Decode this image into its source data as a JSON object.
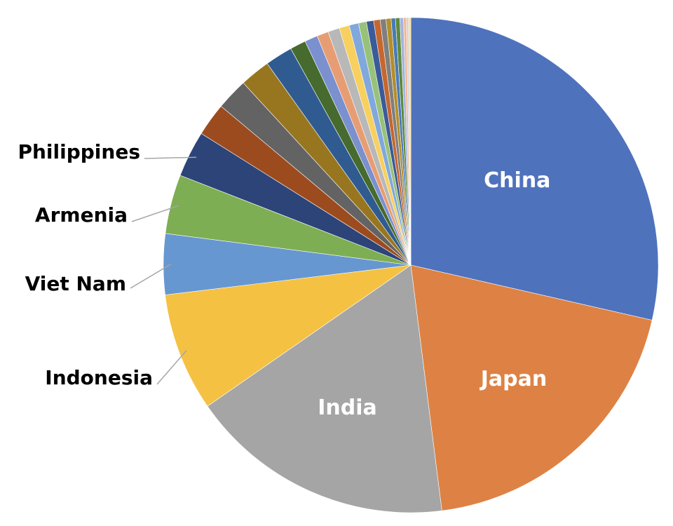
{
  "chart_data": {
    "type": "pie",
    "title": "",
    "start_angle_deg": 0,
    "direction": "clockwise",
    "slices": [
      {
        "label": "China",
        "value": 30.3,
        "color": "#4f72bd",
        "label_style": "inside"
      },
      {
        "label": "Japan",
        "value": 20.6,
        "color": "#dd8244",
        "label_style": "inside"
      },
      {
        "label": "India",
        "value": 18.4,
        "color": "#a5a5a5",
        "label_style": "inside"
      },
      {
        "label": "Indonesia",
        "value": 8.2,
        "color": "#f4c142",
        "label_style": "outside"
      },
      {
        "label": "Viet Nam",
        "value": 4.2,
        "color": "#6797d0",
        "label_style": "outside"
      },
      {
        "label": "Armenia",
        "value": 4.1,
        "color": "#7eae53",
        "label_style": "outside"
      },
      {
        "label": "Philippines",
        "value": 3.2,
        "color": "#2c4478",
        "label_style": "outside"
      },
      {
        "value": 2.3,
        "color": "#9c4b1f"
      },
      {
        "value": 2.2,
        "color": "#636363"
      },
      {
        "value": 2.1,
        "color": "#98761f"
      },
      {
        "value": 1.9,
        "color": "#2f5b91"
      },
      {
        "value": 1.1,
        "color": "#476a2e"
      },
      {
        "value": 0.9,
        "color": "#7a90cf"
      },
      {
        "value": 0.8,
        "color": "#e79d73"
      },
      {
        "value": 0.8,
        "color": "#b8b8b8"
      },
      {
        "value": 0.7,
        "color": "#f7d05f"
      },
      {
        "value": 0.65,
        "color": "#80a8dc"
      },
      {
        "value": 0.55,
        "color": "#98c279"
      },
      {
        "value": 0.5,
        "color": "#3b5a99"
      },
      {
        "value": 0.45,
        "color": "#c5672e"
      },
      {
        "value": 0.4,
        "color": "#7f7f7f"
      },
      {
        "value": 0.35,
        "color": "#b38f2a"
      },
      {
        "value": 0.3,
        "color": "#4a7ab8"
      },
      {
        "value": 0.3,
        "color": "#5e8a3c"
      },
      {
        "value": 0.25,
        "color": "#a3b5e0"
      },
      {
        "value": 0.2,
        "color": "#f1b896"
      },
      {
        "value": 0.15,
        "color": "#d0d0d0"
      },
      {
        "value": 0.15,
        "color": "#f9dc8f"
      }
    ]
  }
}
